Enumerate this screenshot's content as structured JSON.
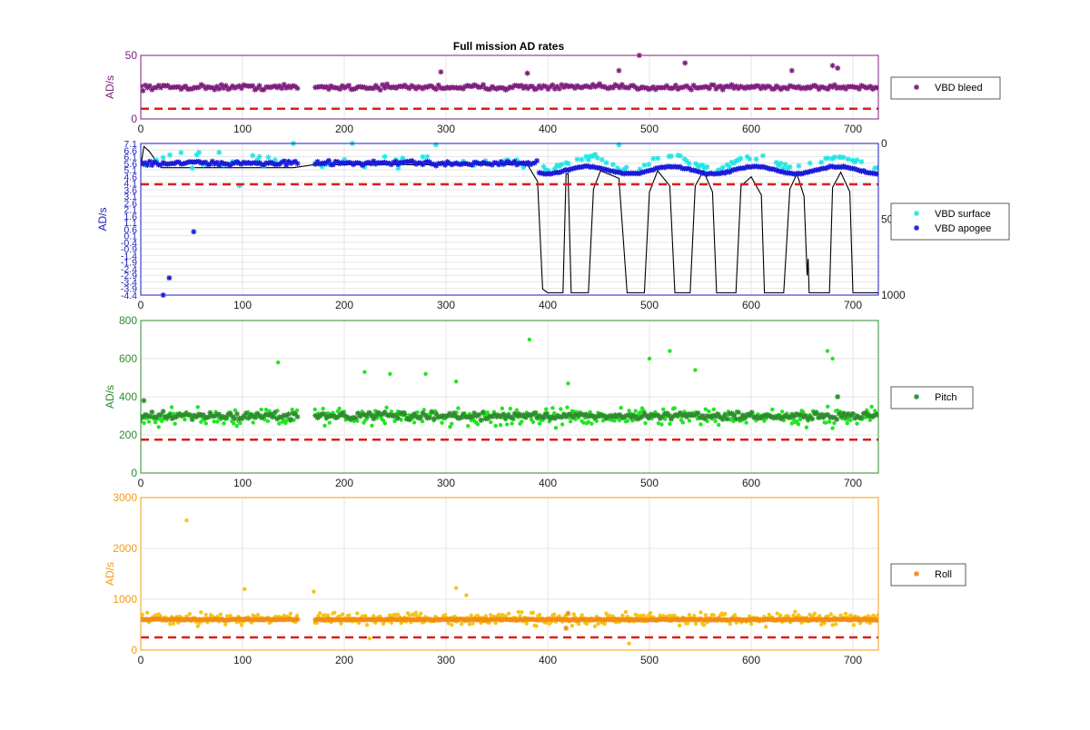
{
  "figure": {
    "title": "Full mission AD rates"
  },
  "chart_data": [
    {
      "type": "scatter",
      "ylabel": "AD/s",
      "xlim": [
        0,
        725
      ],
      "ylim": [
        0,
        50
      ],
      "xticks": [
        "0",
        "100",
        "200",
        "300",
        "400",
        "500",
        "600",
        "700"
      ],
      "yticks": [
        "0",
        "50"
      ],
      "threshold": 8,
      "axis_color": "#7e1e7e",
      "grid": true,
      "legend_position": "right",
      "series": [
        {
          "name": "VBD bleed",
          "color": "#7e1e7e",
          "marker": "asterisk",
          "base": 25,
          "spread": 3,
          "outliers": [
            [
              490,
              50
            ],
            [
              535,
              44
            ],
            [
              295,
              37
            ],
            [
              380,
              36
            ],
            [
              470,
              38
            ],
            [
              640,
              38
            ],
            [
              685,
              40
            ],
            [
              680,
              42
            ]
          ]
        }
      ]
    },
    {
      "type": "scatter",
      "ylabel": "AD/s",
      "xlim": [
        0,
        725
      ],
      "ylim": [
        -4.4,
        7.1
      ],
      "xticks": [
        "0",
        "100",
        "200",
        "300",
        "400",
        "500",
        "600",
        "700"
      ],
      "yticks": [
        "7.1",
        "6.6",
        "6.1",
        "5.6",
        "5.1",
        "4.6",
        "4.1",
        "3.6",
        "3.1",
        "2.6",
        "2.1",
        "1.6",
        "1.1",
        "0.6",
        "0.1",
        "-0.4",
        "-0.9",
        "-1.4",
        "-1.9",
        "-2.4",
        "-2.9",
        "-3.4",
        "-3.9",
        "-4.4"
      ],
      "y2ticks": [
        "0",
        "500",
        "1000"
      ],
      "y2lim": [
        0,
        1000
      ],
      "threshold": 4.0,
      "axis_color": "#1b1bbf",
      "grid": true,
      "legend_position": "right",
      "series": [
        {
          "name": "VBD surface",
          "color": "#22e5e5",
          "marker": "asterisk",
          "base": 5.8,
          "spread": 0.8,
          "outliers": [
            [
              97,
              3.9
            ],
            [
              150,
              7.1
            ],
            [
              208,
              7.1
            ],
            [
              290,
              7.0
            ],
            [
              470,
              7.0
            ]
          ]
        },
        {
          "name": "VBD apogee",
          "color": "#1a1ad9",
          "marker": "asterisk",
          "base": 5.6,
          "spread": 0.25,
          "outliers": [
            [
              52,
              0.4
            ],
            [
              28,
              -3.1
            ],
            [
              22,
              -4.4
            ]
          ]
        }
      ],
      "depth_profile": {
        "color": "#000000",
        "points": [
          [
            0,
            150
          ],
          [
            3,
            20
          ],
          [
            8,
            50
          ],
          [
            20,
            160
          ],
          [
            150,
            160
          ],
          [
            170,
            140
          ],
          [
            380,
            140
          ],
          [
            390,
            250
          ],
          [
            395,
            960
          ],
          [
            400,
            985
          ],
          [
            415,
            985
          ],
          [
            418,
            200
          ],
          [
            420,
            200
          ],
          [
            423,
            985
          ],
          [
            440,
            985
          ],
          [
            445,
            300
          ],
          [
            452,
            180
          ],
          [
            470,
            230
          ],
          [
            478,
            985
          ],
          [
            495,
            985
          ],
          [
            500,
            320
          ],
          [
            508,
            180
          ],
          [
            520,
            280
          ],
          [
            525,
            985
          ],
          [
            540,
            985
          ],
          [
            545,
            280
          ],
          [
            553,
            180
          ],
          [
            562,
            320
          ],
          [
            566,
            985
          ],
          [
            585,
            985
          ],
          [
            590,
            280
          ],
          [
            600,
            220
          ],
          [
            610,
            340
          ],
          [
            613,
            985
          ],
          [
            632,
            985
          ],
          [
            638,
            300
          ],
          [
            645,
            200
          ],
          [
            652,
            350
          ],
          [
            655,
            870
          ],
          [
            656,
            760
          ],
          [
            657,
            985
          ],
          [
            677,
            985
          ],
          [
            680,
            290
          ],
          [
            688,
            190
          ],
          [
            697,
            320
          ],
          [
            700,
            985
          ],
          [
            725,
            985
          ]
        ]
      }
    },
    {
      "type": "scatter",
      "ylabel": "AD/s",
      "xlim": [
        0,
        725
      ],
      "ylim": [
        0,
        800
      ],
      "xticks": [
        "0",
        "100",
        "200",
        "300",
        "400",
        "500",
        "600",
        "700"
      ],
      "yticks": [
        "0",
        "200",
        "400",
        "600",
        "800"
      ],
      "threshold": 175,
      "axis_color": "#2e8b2e",
      "grid": true,
      "legend_position": "right",
      "series": [
        {
          "name": "",
          "color": "#22e522",
          "marker": "dot",
          "base": 295,
          "spread": 70,
          "outliers": [
            [
              382,
              700
            ],
            [
              500,
              600
            ],
            [
              520,
              640
            ],
            [
              545,
              540
            ],
            [
              675,
              640
            ],
            [
              680,
              600
            ],
            [
              135,
              580
            ],
            [
              220,
              530
            ],
            [
              245,
              520
            ],
            [
              280,
              520
            ],
            [
              420,
              470
            ],
            [
              310,
              480
            ]
          ]
        },
        {
          "name": "Pitch",
          "color": "#2e8b2e",
          "marker": "asterisk",
          "base": 300,
          "spread": 25,
          "outliers": [
            [
              685,
              400
            ],
            [
              3,
              380
            ]
          ]
        }
      ]
    },
    {
      "type": "scatter",
      "ylabel": "AD/s",
      "xlim": [
        0,
        725
      ],
      "ylim": [
        0,
        3000
      ],
      "xticks": [
        "0",
        "100",
        "200",
        "300",
        "400",
        "500",
        "600",
        "700"
      ],
      "yticks": [
        "0",
        "1000",
        "2000",
        "3000"
      ],
      "threshold": 250,
      "axis_color": "#f39c12",
      "grid": true,
      "legend_position": "right",
      "series": [
        {
          "name": "",
          "color": "#f5c518",
          "marker": "dot",
          "base": 620,
          "spread": 180,
          "outliers": [
            [
              45,
              2550
            ],
            [
              102,
              1200
            ],
            [
              310,
              1220
            ],
            [
              170,
              1150
            ],
            [
              320,
              1080
            ],
            [
              480,
              130
            ],
            [
              225,
              230
            ]
          ]
        },
        {
          "name": "Roll",
          "color": "#f28c13",
          "marker": "asterisk",
          "base": 600,
          "spread": 15,
          "outliers": [
            [
              420,
              720
            ],
            [
              418,
              430
            ]
          ]
        }
      ]
    }
  ]
}
